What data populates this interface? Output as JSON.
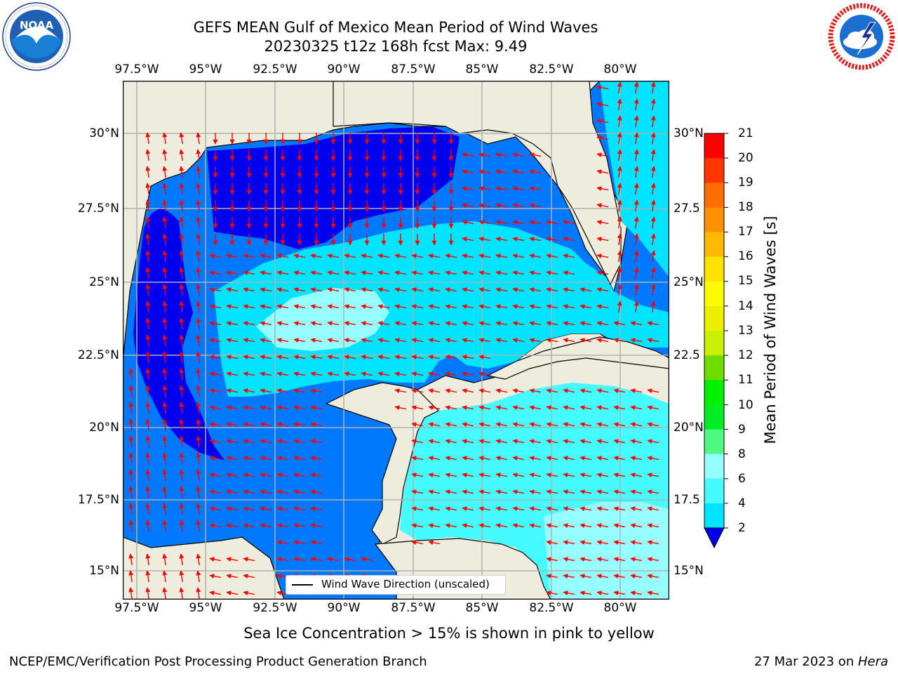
{
  "title": {
    "line1": "GEFS MEAN Gulf of Mexico Mean Period of Wind Waves",
    "line2": "20230325 t12z 168h fcst   Max: 9.49"
  },
  "logos": {
    "left": {
      "name": "NOAA",
      "text": "NOAA",
      "ring_text": "NATIONAL OCEANIC AND ATMOSPHERIC ADMINISTRATION · U.S. DEPARTMENT OF COMMERCE"
    },
    "right": {
      "name": "National Weather Service",
      "ring_text": "NATIONAL WEATHER SERVICE"
    }
  },
  "map": {
    "lon_ticks": [
      "97.5°W",
      "95°W",
      "92.5°W",
      "90°W",
      "87.5°W",
      "85°W",
      "82.5°W",
      "80°W"
    ],
    "lat_ticks_left": [
      "30°N",
      "27.5°N",
      "25°N",
      "22.5°N",
      "20°N",
      "17.5°N",
      "15°N"
    ],
    "lat_ticks_right": [
      "30°N",
      "27.5",
      "25°N",
      "22.5",
      "20°N",
      "17.5",
      "15°N"
    ],
    "lon_range": [
      -98,
      -78.25
    ],
    "lat_range": [
      14,
      31.75
    ],
    "grid": true,
    "land_color": "#eeecdc",
    "vector_color": "#ff0000"
  },
  "legend": {
    "label": "Wind Wave Direction (unscaled)",
    "position": "lower-center"
  },
  "colorbar": {
    "label": "Mean Period of Wind Waves [s]",
    "ticks": [
      "21",
      "20",
      "19",
      "18",
      "17",
      "16",
      "15",
      "14",
      "13",
      "12",
      "11",
      "10",
      "9",
      "8",
      "6",
      "4",
      "2"
    ],
    "levels": [
      0,
      2,
      4,
      6,
      8,
      9,
      10,
      11,
      12,
      13,
      14,
      15,
      16,
      17,
      18,
      19,
      20,
      21
    ],
    "colors": [
      "#0000ef",
      "#0079ff",
      "#00e4ff",
      "#45fbff",
      "#96fdff",
      "#4ef982",
      "#00ec24",
      "#00f000",
      "#6fdd00",
      "#c8f000",
      "#ecf000",
      "#fbfc00",
      "#ffe100",
      "#ffba00",
      "#ff9100",
      "#ff6c00",
      "#ff3600",
      "#ff0000"
    ]
  },
  "note": "Sea Ice Concentration > 15% is shown in pink to yellow",
  "footer": {
    "left": "NCEP/EMC/Verification Post Processing Product Generation Branch",
    "date": "27 Mar 2023 on ",
    "machine": "Hera"
  }
}
